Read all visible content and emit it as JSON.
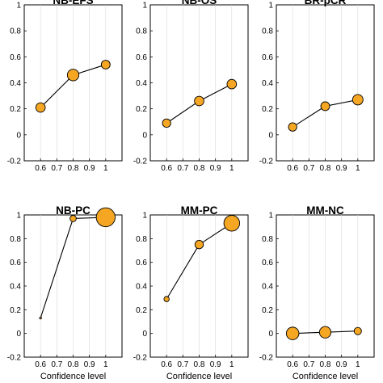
{
  "chart_data": [
    {
      "type": "scatter",
      "title": "NB-EFS",
      "xlabel": "",
      "ylabel": "",
      "x": [
        0.6,
        0.8,
        1
      ],
      "y": [
        0.21,
        0.46,
        0.54
      ],
      "marker_size": [
        0.45,
        0.55,
        0.42
      ],
      "xticks": [
        "0.6",
        "0.7",
        "0.8",
        "0.9",
        "1"
      ],
      "yticks": [
        "-0.2",
        "0",
        "0.2",
        "0.4",
        "0.6",
        "0.8",
        "1"
      ],
      "xlim": [
        0.5,
        1.1
      ],
      "ylim": [
        -0.2,
        1
      ],
      "grid": "x",
      "color": "#F5A623"
    },
    {
      "type": "scatter",
      "title": "NB-OS",
      "xlabel": "",
      "ylabel": "",
      "x": [
        0.6,
        0.8,
        1
      ],
      "y": [
        0.09,
        0.26,
        0.39
      ],
      "marker_size": [
        0.4,
        0.45,
        0.45
      ],
      "xticks": [
        "0.6",
        "0.7",
        "0.8",
        "0.9",
        "1"
      ],
      "yticks": [
        "-0.2",
        "0",
        "0.2",
        "0.4",
        "0.6",
        "0.8",
        "1"
      ],
      "xlim": [
        0.5,
        1.1
      ],
      "ylim": [
        -0.2,
        1
      ],
      "grid": "x",
      "color": "#F5A623"
    },
    {
      "type": "scatter",
      "title": "BR-pCR",
      "xlabel": "",
      "ylabel": "",
      "x": [
        0.6,
        0.8,
        1
      ],
      "y": [
        0.06,
        0.22,
        0.27
      ],
      "marker_size": [
        0.4,
        0.42,
        0.5
      ],
      "xticks": [
        "0.6",
        "0.7",
        "0.8",
        "0.9",
        "1"
      ],
      "yticks": [
        "-0.2",
        "0",
        "0.2",
        "0.4",
        "0.6",
        "0.8",
        "1"
      ],
      "xlim": [
        0.5,
        1.1
      ],
      "ylim": [
        -0.2,
        1
      ],
      "grid": "x",
      "color": "#F5A623"
    },
    {
      "type": "scatter",
      "title": "NB-PC",
      "xlabel": "Confidence level",
      "ylabel": "",
      "x": [
        0.6,
        0.8,
        1
      ],
      "y": [
        0.13,
        0.97,
        0.98
      ],
      "marker_size": [
        0.05,
        0.3,
        0.9
      ],
      "xticks": [
        "0.6",
        "0.7",
        "0.8",
        "0.9",
        "1"
      ],
      "yticks": [
        "-0.2",
        "0",
        "0.2",
        "0.4",
        "0.6",
        "0.8",
        "1"
      ],
      "xlim": [
        0.5,
        1.1
      ],
      "ylim": [
        -0.2,
        1
      ],
      "grid": "x",
      "color": "#F5A623"
    },
    {
      "type": "scatter",
      "title": "MM-PC",
      "xlabel": "Confidence level",
      "ylabel": "",
      "x": [
        0.6,
        0.8,
        1
      ],
      "y": [
        0.29,
        0.75,
        0.93
      ],
      "marker_size": [
        0.25,
        0.4,
        0.75
      ],
      "xticks": [
        "0.6",
        "0.7",
        "0.8",
        "0.9",
        "1"
      ],
      "yticks": [
        "-0.2",
        "0",
        "0.2",
        "0.4",
        "0.6",
        "0.8",
        "1"
      ],
      "xlim": [
        0.5,
        1.1
      ],
      "ylim": [
        -0.2,
        1
      ],
      "grid": "x",
      "color": "#F5A623"
    },
    {
      "type": "scatter",
      "title": "MM-NC",
      "xlabel": "Confidence level",
      "ylabel": "",
      "x": [
        0.6,
        0.8,
        1
      ],
      "y": [
        0.0,
        0.01,
        0.02
      ],
      "marker_size": [
        0.6,
        0.55,
        0.35
      ],
      "xticks": [
        "0.6",
        "0.7",
        "0.8",
        "0.9",
        "1"
      ],
      "yticks": [
        "-0.2",
        "0",
        "0.2",
        "0.4",
        "0.6",
        "0.8",
        "1"
      ],
      "xlim": [
        0.5,
        1.1
      ],
      "ylim": [
        -0.2,
        1
      ],
      "grid": "x",
      "color": "#F5A623"
    }
  ]
}
